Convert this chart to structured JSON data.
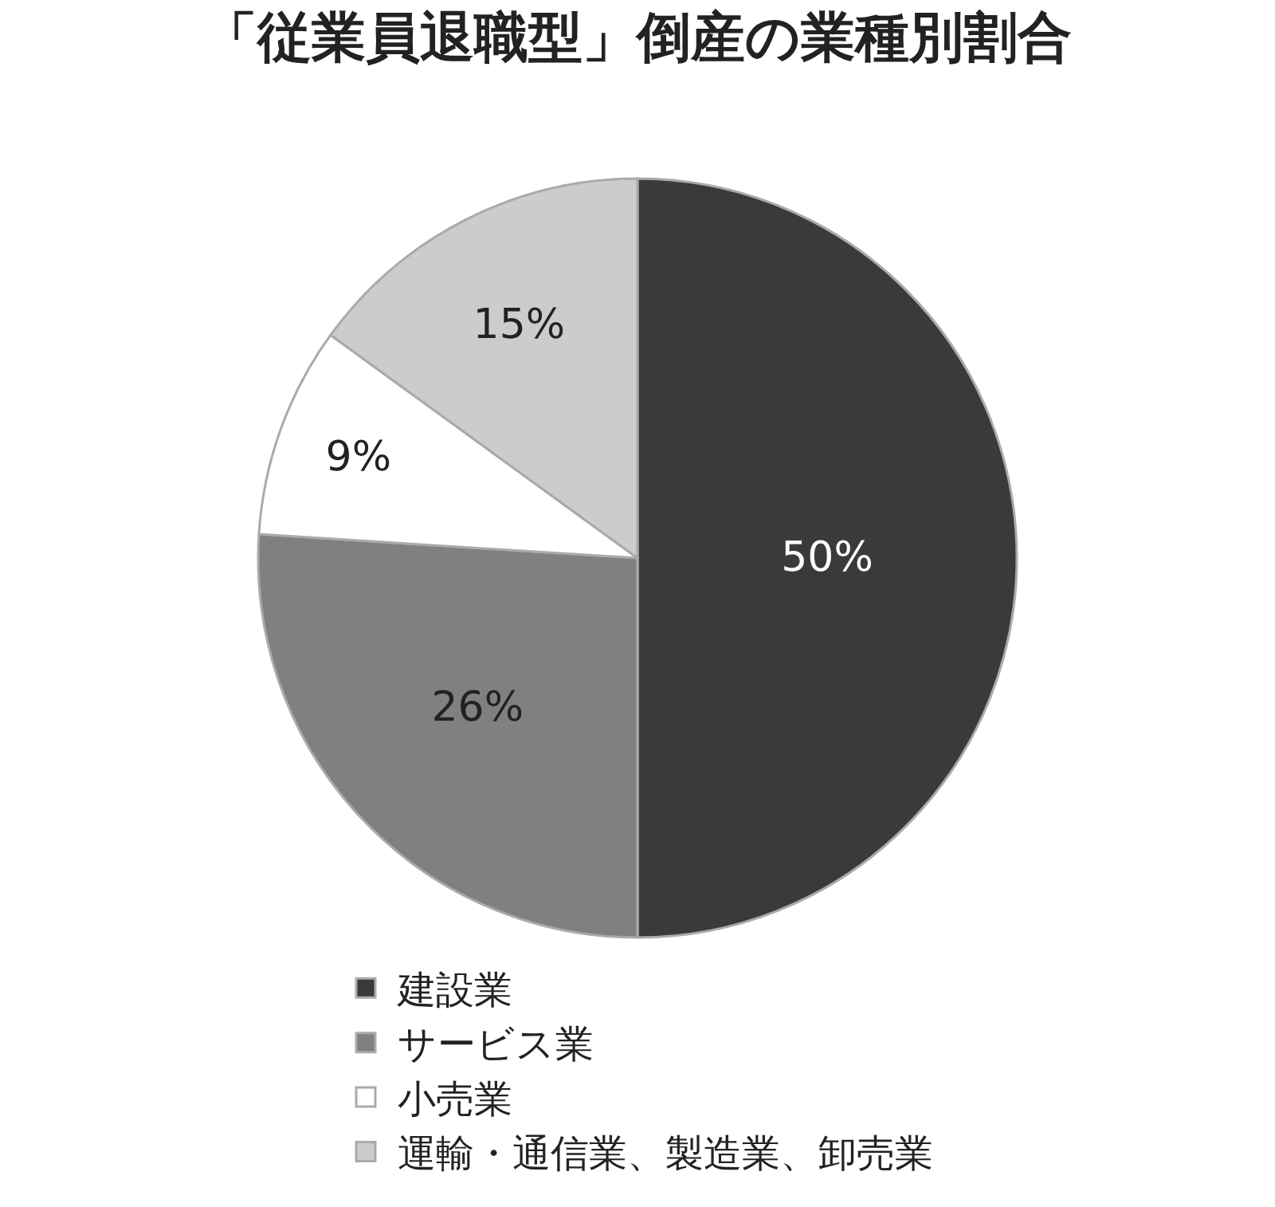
{
  "chart_data": {
    "type": "pie",
    "title": "「従業員退職型」倒産の業種別割合",
    "categories": [
      "建設業",
      "サービス業",
      "小売業",
      "運輸・通信業、製造業、卸売業"
    ],
    "values": [
      50,
      26,
      9,
      15
    ],
    "colors": [
      "#3a3a3a",
      "#808080",
      "#ffffff",
      "#cccccc"
    ],
    "value_labels": [
      "50%",
      "26%",
      "9%",
      "15%"
    ],
    "legend": "bottom"
  }
}
